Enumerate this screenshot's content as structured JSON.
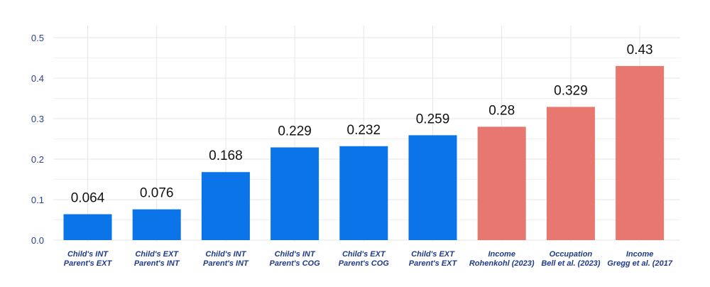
{
  "chart_data": {
    "type": "bar",
    "title": "",
    "xlabel": "",
    "ylabel": "",
    "ylim": [
      0,
      0.53
    ],
    "yticks": [
      0.0,
      0.1,
      0.2,
      0.3,
      0.4,
      0.5
    ],
    "ytick_labels": [
      "0.0",
      "0.1",
      "0.2",
      "0.3",
      "0.4",
      "0.5"
    ],
    "grid": true,
    "categories": [
      {
        "line1": "Child's INT",
        "line2": "Parent's EXT"
      },
      {
        "line1": "Child's EXT",
        "line2": "Parent's INT"
      },
      {
        "line1": "Child's INT",
        "line2": "Parent's INT"
      },
      {
        "line1": "Child's INT",
        "line2": "Parent's COG"
      },
      {
        "line1": "Child's EXT",
        "line2": "Parent's COG"
      },
      {
        "line1": "Child's EXT",
        "line2": "Parent's EXT"
      },
      {
        "line1": "Income",
        "line2": "Rohenkohl (2023)"
      },
      {
        "line1": "Occupation",
        "line2": "Bell et al. (2023)"
      },
      {
        "line1": "Income",
        "line2": "Gregg et al. (2017"
      }
    ],
    "values": [
      0.064,
      0.076,
      0.168,
      0.229,
      0.232,
      0.259,
      0.28,
      0.329,
      0.43
    ],
    "value_labels": [
      "0.064",
      "0.076",
      "0.168",
      "0.229",
      "0.232",
      "0.259",
      "0.28",
      "0.329",
      "0.43"
    ],
    "bar_colors": [
      "#0a74e8",
      "#0a74e8",
      "#0a74e8",
      "#0a74e8",
      "#0a74e8",
      "#0a74e8",
      "#e8776f",
      "#e8776f",
      "#e8776f"
    ]
  }
}
